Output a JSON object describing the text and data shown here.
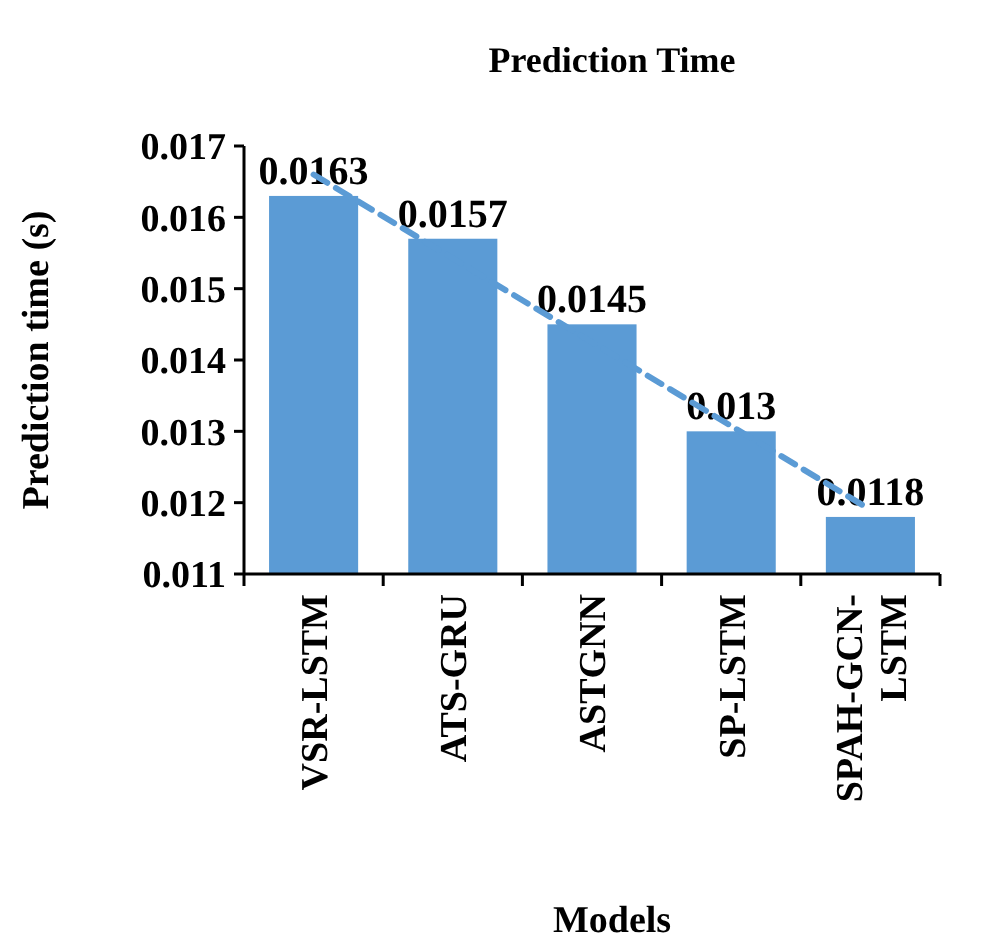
{
  "chart_data": {
    "type": "bar",
    "title": "Prediction Time",
    "xlabel": "Models",
    "ylabel": "Prediction time (s)",
    "categories": [
      "VSR-LSTM",
      "ATS-GRU",
      "ASTGNN",
      "SP-LSTM",
      "SPAH-GCN-LSTM"
    ],
    "series": [
      {
        "color": "#5b9bd5",
        "values": [
          0.0163,
          0.0157,
          0.0145,
          0.013,
          0.0118
        ],
        "value_labels": [
          "0.0163",
          "0.0157",
          "0.0145",
          "0.013",
          "0.0118"
        ]
      },
      {
        "type": "line",
        "color": "#5b9bd5",
        "line_style": "dashed",
        "x": [
          "VSR-LSTM",
          "SPAH-GCN-LSTM"
        ],
        "values": [
          0.0166,
          0.0119
        ]
      }
    ],
    "ylim": [
      0.011,
      0.017
    ],
    "yticks": [
      0.011,
      0.012,
      0.013,
      0.014,
      0.015,
      0.016,
      0.017
    ],
    "grid": false
  }
}
